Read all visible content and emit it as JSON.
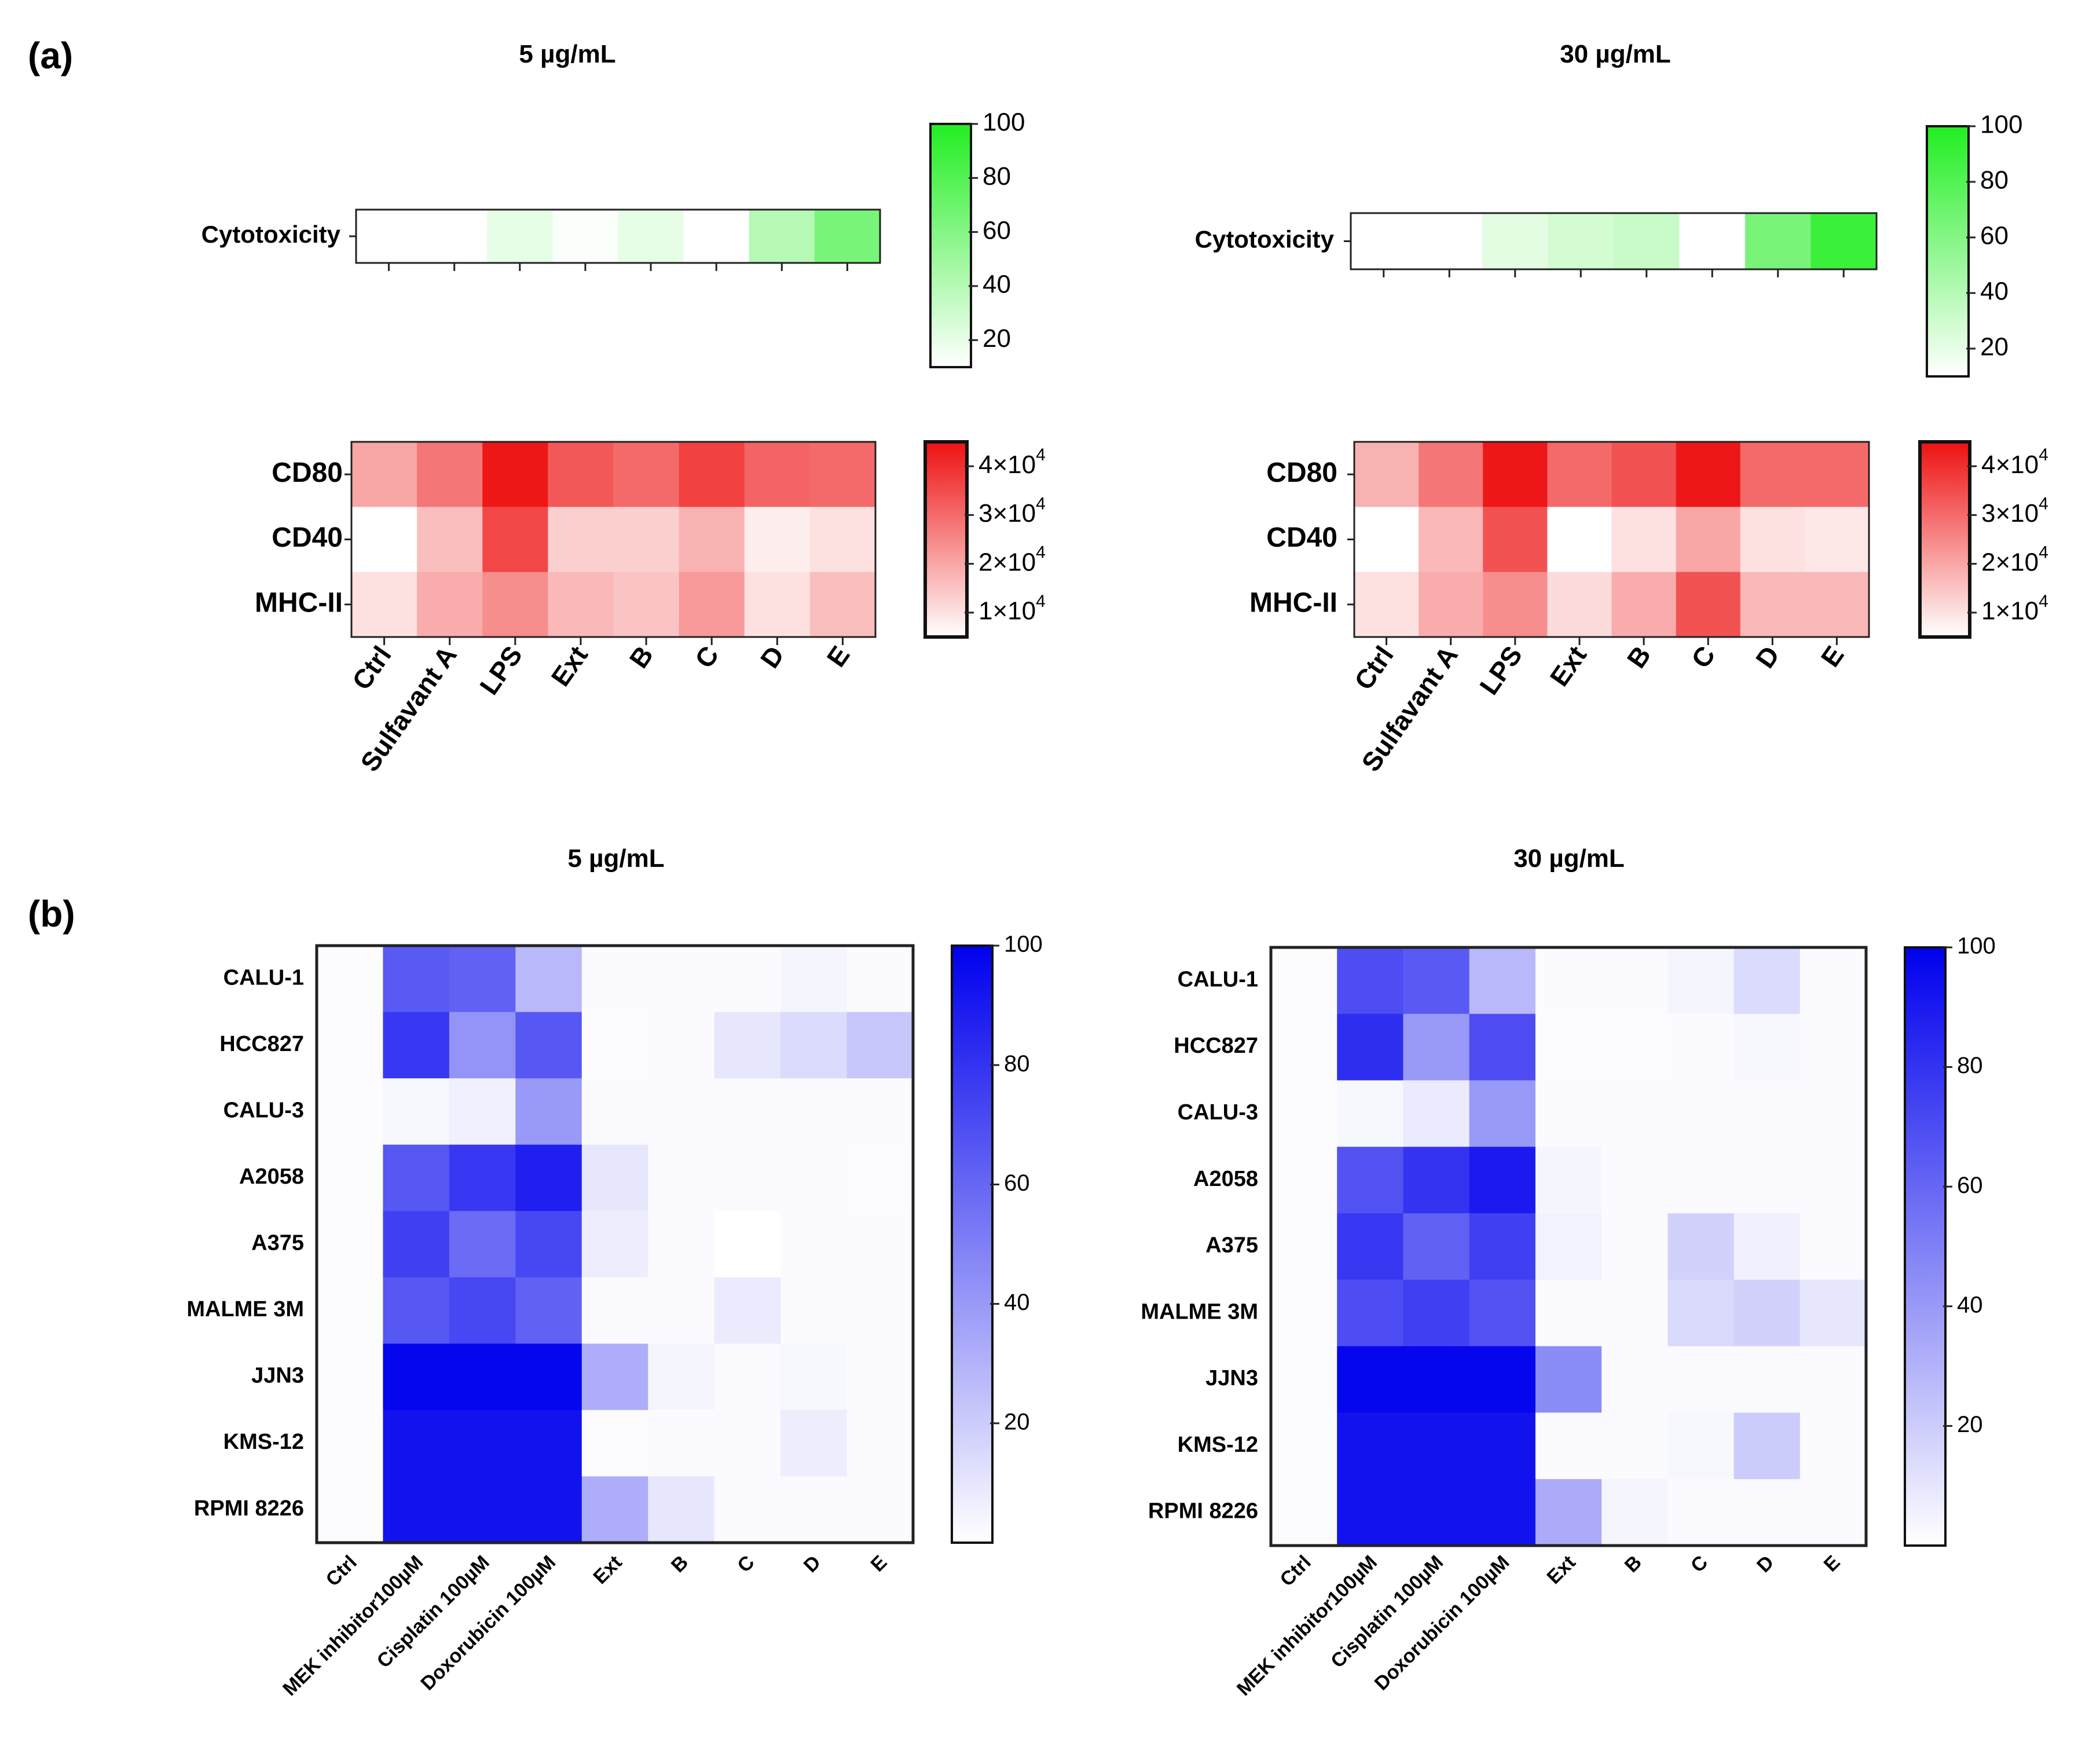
{
  "panels": {
    "a": "(a)",
    "b": "(b)"
  },
  "chart_data": [
    {
      "id": "a-left-cytotoxicity",
      "type": "heatmap",
      "title": "5 µg/mL",
      "panel": "(a)",
      "rows": [
        "Cytotoxicity"
      ],
      "columns": [
        "Ctrl",
        "Sulfavant A",
        "LPS",
        "Ext",
        "B",
        "C",
        "D",
        "E"
      ],
      "values": [
        [
          0,
          0,
          20,
          12,
          20,
          0,
          40,
          65
        ]
      ],
      "colorscale": {
        "low": "#ffffff",
        "high": "#22ee22",
        "range": [
          10,
          100
        ],
        "ticks": [
          "20",
          "40",
          "60",
          "80",
          "100"
        ]
      }
    },
    {
      "id": "a-left-markers",
      "type": "heatmap",
      "title": "5 µg/mL",
      "rows": [
        "CD80",
        "CD40",
        "MHC-II"
      ],
      "columns": [
        "Ctrl",
        "Sulfavant A",
        "LPS",
        "Ext",
        "B",
        "C",
        "D",
        "E"
      ],
      "values": [
        [
          20000,
          28000,
          44000,
          33000,
          30000,
          37000,
          31000,
          30000
        ],
        [
          5000,
          16000,
          36000,
          13000,
          13000,
          18000,
          8000,
          10000
        ],
        [
          10000,
          19000,
          24000,
          17000,
          15000,
          22000,
          10000,
          16000
        ]
      ],
      "colorscale": {
        "low": "#ffffff",
        "high": "#ee1111",
        "range": [
          5000,
          45000
        ],
        "ticks": [
          "1×10",
          "2×10",
          "3×10",
          "4×10"
        ],
        "exponent": "4"
      },
      "xlabels_rotated": true
    },
    {
      "id": "a-right-cytotoxicity",
      "type": "heatmap",
      "title": "30 µg/mL",
      "rows": [
        "Cytotoxicity"
      ],
      "columns": [
        "Ctrl",
        "Sulfavant A",
        "LPS",
        "Ext",
        "B",
        "C",
        "D",
        "E"
      ],
      "values": [
        [
          0,
          0,
          22,
          28,
          32,
          0,
          65,
          90
        ]
      ],
      "colorscale": {
        "low": "#ffffff",
        "high": "#22ee22",
        "range": [
          10,
          100
        ],
        "ticks": [
          "20",
          "40",
          "60",
          "80",
          "100"
        ]
      }
    },
    {
      "id": "a-right-markers",
      "type": "heatmap",
      "title": "30 µg/mL",
      "rows": [
        "CD80",
        "CD40",
        "MHC-II"
      ],
      "columns": [
        "Ctrl",
        "Sulfavant A",
        "LPS",
        "Ext",
        "B",
        "C",
        "D",
        "E"
      ],
      "values": [
        [
          18000,
          28000,
          44000,
          30000,
          34000,
          44000,
          30000,
          30000
        ],
        [
          5000,
          17000,
          34000,
          5000,
          10000,
          20000,
          10000,
          9000
        ],
        [
          10000,
          19000,
          24000,
          11000,
          19000,
          34000,
          17000,
          17000
        ]
      ],
      "colorscale": {
        "low": "#ffffff",
        "high": "#ee1111",
        "range": [
          5000,
          45000
        ],
        "ticks": [
          "1×10",
          "2×10",
          "3×10",
          "4×10"
        ],
        "exponent": "4"
      }
    },
    {
      "id": "b-left",
      "type": "heatmap",
      "title": "5 µg/mL",
      "panel": "(b)",
      "rows": [
        "CALU-1",
        "HCC827",
        "CALU-3",
        "A2058",
        "A375",
        "MALME 3M",
        "JJN3",
        "KMS-12",
        "RPMI 8226"
      ],
      "columns": [
        "Ctrl",
        "MEK inhibitor100µM",
        "Cisplatin 100µM",
        "Doxorubicin 100µM",
        "Ext",
        "B",
        "C",
        "D",
        "E"
      ],
      "values": [
        [
          1,
          65,
          62,
          28,
          2,
          2,
          2,
          4,
          2
        ],
        [
          1,
          78,
          42,
          66,
          1,
          2,
          10,
          14,
          22
        ],
        [
          1,
          3,
          6,
          40,
          2,
          2,
          2,
          2,
          2
        ],
        [
          1,
          66,
          78,
          88,
          10,
          2,
          2,
          2,
          1
        ],
        [
          1,
          75,
          58,
          72,
          7,
          2,
          0,
          2,
          2
        ],
        [
          1,
          66,
          72,
          62,
          2,
          2,
          8,
          2,
          2
        ],
        [
          1,
          98,
          98,
          98,
          32,
          4,
          2,
          3,
          2
        ],
        [
          1,
          93,
          93,
          93,
          1,
          2,
          2,
          7,
          2
        ],
        [
          1,
          93,
          93,
          93,
          32,
          10,
          2,
          2,
          2
        ]
      ],
      "colorscale": {
        "low": "#ffffff",
        "high": "#0000ee",
        "range": [
          0,
          100
        ],
        "ticks": [
          "20",
          "40",
          "60",
          "80",
          "100"
        ]
      }
    },
    {
      "id": "b-right",
      "type": "heatmap",
      "title": "30 µg/mL",
      "rows": [
        "CALU-1",
        "HCC827",
        "CALU-3",
        "A2058",
        "A375",
        "MALME 3M",
        "JJN3",
        "KMS-12",
        "RPMI 8226"
      ],
      "columns": [
        "Ctrl",
        "MEK inhibitor100µM",
        "Cisplatin 100µM",
        "Doxorubicin 100µM",
        "Ext",
        "B",
        "C",
        "D",
        "E"
      ],
      "values": [
        [
          1,
          70,
          65,
          28,
          2,
          2,
          4,
          14,
          2
        ],
        [
          1,
          82,
          40,
          70,
          1,
          1,
          2,
          3,
          2
        ],
        [
          1,
          3,
          8,
          40,
          2,
          2,
          2,
          2,
          2
        ],
        [
          1,
          68,
          80,
          90,
          4,
          2,
          2,
          2,
          2
        ],
        [
          1,
          78,
          62,
          75,
          5,
          2,
          18,
          6,
          2
        ],
        [
          1,
          70,
          75,
          68,
          2,
          2,
          15,
          18,
          10
        ],
        [
          1,
          98,
          98,
          98,
          45,
          2,
          2,
          2,
          2
        ],
        [
          1,
          93,
          93,
          93,
          2,
          2,
          3,
          20,
          2
        ],
        [
          1,
          93,
          93,
          93,
          33,
          4,
          2,
          2,
          2
        ]
      ],
      "colorscale": {
        "low": "#ffffff",
        "high": "#0000ee",
        "range": [
          0,
          100
        ],
        "ticks": [
          "20",
          "40",
          "60",
          "80",
          "100"
        ]
      }
    }
  ]
}
